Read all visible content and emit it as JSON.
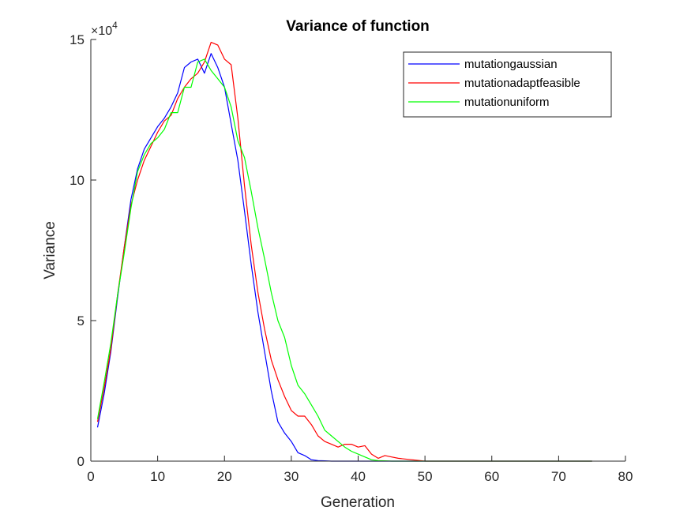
{
  "chart_data": {
    "type": "line",
    "title": "Variance of function",
    "xlabel": "Generation",
    "ylabel": "Variance",
    "xlim": [
      0,
      80
    ],
    "ylim": [
      0,
      15
    ],
    "y_multiplier": "×10",
    "y_multiplier_exp": "4",
    "xticks": [
      "0",
      "10",
      "20",
      "30",
      "40",
      "50",
      "60",
      "70",
      "80"
    ],
    "yticks": [
      "0",
      "5",
      "10",
      "15"
    ],
    "grid": false,
    "legend_position": "top-right",
    "series": [
      {
        "name": "mutationgaussian",
        "color": "#0000ff",
        "x": [
          1,
          2,
          3,
          4,
          5,
          6,
          7,
          8,
          9,
          10,
          11,
          12,
          13,
          14,
          15,
          16,
          17,
          18,
          19,
          20,
          21,
          22,
          23,
          24,
          25,
          26,
          27,
          28,
          29,
          30,
          31,
          32,
          33,
          34,
          35,
          36,
          37,
          38,
          40,
          45,
          50,
          60,
          70,
          75
        ],
        "y": [
          1.2,
          2.4,
          3.9,
          5.8,
          7.6,
          9.3,
          10.4,
          11.1,
          11.5,
          11.9,
          12.2,
          12.6,
          13.1,
          14.0,
          14.2,
          14.3,
          13.8,
          14.5,
          14.0,
          13.3,
          12.0,
          10.7,
          8.9,
          7.0,
          5.3,
          3.9,
          2.5,
          1.4,
          1.0,
          0.7,
          0.3,
          0.2,
          0.05,
          0.02,
          0.01,
          0.0,
          0.0,
          0.0,
          0.0,
          0.0,
          0.0,
          0.0,
          0.0,
          0.0
        ]
      },
      {
        "name": "mutationadaptfeasible",
        "color": "#ff0000",
        "x": [
          1,
          2,
          3,
          4,
          5,
          6,
          7,
          8,
          9,
          10,
          11,
          12,
          13,
          14,
          15,
          16,
          17,
          18,
          19,
          20,
          21,
          22,
          23,
          24,
          25,
          26,
          27,
          28,
          29,
          30,
          31,
          32,
          33,
          34,
          35,
          36,
          37,
          38,
          39,
          40,
          41,
          42,
          43,
          44,
          45,
          46,
          48,
          50,
          55,
          60,
          70,
          75
        ],
        "y": [
          1.4,
          2.6,
          4.0,
          5.9,
          7.6,
          9.1,
          10.0,
          10.7,
          11.2,
          11.7,
          12.1,
          12.3,
          12.9,
          13.3,
          13.6,
          13.8,
          14.2,
          14.9,
          14.8,
          14.3,
          14.1,
          12.2,
          9.8,
          7.7,
          6.0,
          4.7,
          3.6,
          2.9,
          2.3,
          1.8,
          1.6,
          1.6,
          1.3,
          0.9,
          0.7,
          0.6,
          0.5,
          0.6,
          0.6,
          0.5,
          0.55,
          0.25,
          0.1,
          0.2,
          0.15,
          0.1,
          0.05,
          0.0,
          0.0,
          0.0,
          0.0,
          0.0
        ]
      },
      {
        "name": "mutationuniform",
        "color": "#00ff00",
        "x": [
          1,
          2,
          3,
          4,
          5,
          6,
          7,
          8,
          9,
          10,
          11,
          12,
          13,
          14,
          15,
          16,
          17,
          18,
          19,
          20,
          21,
          22,
          23,
          24,
          25,
          26,
          27,
          28,
          29,
          30,
          31,
          32,
          33,
          34,
          35,
          36,
          37,
          38,
          39,
          40,
          41,
          42,
          43,
          44,
          45,
          50,
          60,
          70,
          75
        ],
        "y": [
          1.5,
          2.8,
          4.2,
          5.9,
          7.4,
          9.0,
          10.3,
          10.9,
          11.3,
          11.5,
          11.8,
          12.4,
          12.4,
          13.3,
          13.3,
          14.2,
          14.3,
          13.9,
          13.6,
          13.3,
          12.6,
          11.4,
          10.8,
          9.6,
          8.3,
          7.2,
          6.0,
          5.0,
          4.4,
          3.4,
          2.7,
          2.4,
          2.0,
          1.6,
          1.1,
          0.9,
          0.7,
          0.5,
          0.35,
          0.25,
          0.15,
          0.05,
          0.02,
          0.01,
          0.0,
          0.0,
          0.0,
          0.0,
          0.0
        ]
      }
    ]
  }
}
